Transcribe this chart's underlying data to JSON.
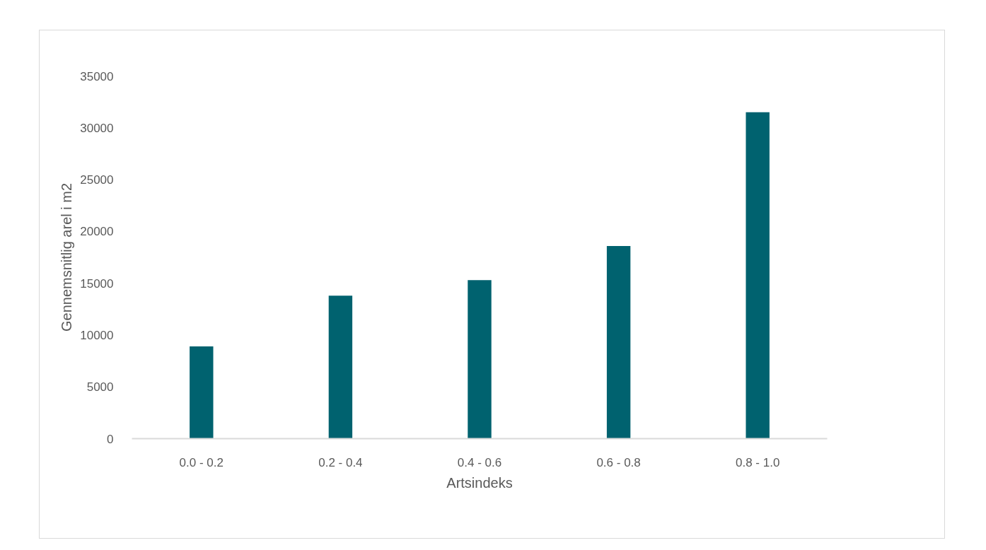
{
  "chart_data": {
    "type": "bar",
    "xlabel": "Artsindeks",
    "ylabel": "Gennemsnitlig arel i m2",
    "categories": [
      "0.0 - 0.2",
      "0.2 - 0.4",
      "0.4 - 0.6",
      "0.6 - 0.8",
      "0.8 - 1.0"
    ],
    "values": [
      8900,
      13800,
      15300,
      18600,
      31500
    ],
    "color": "#00626f",
    "ylim": [
      0,
      35000
    ],
    "yticks": [
      0,
      5000,
      10000,
      15000,
      20000,
      25000,
      30000,
      35000
    ],
    "grid": false
  }
}
